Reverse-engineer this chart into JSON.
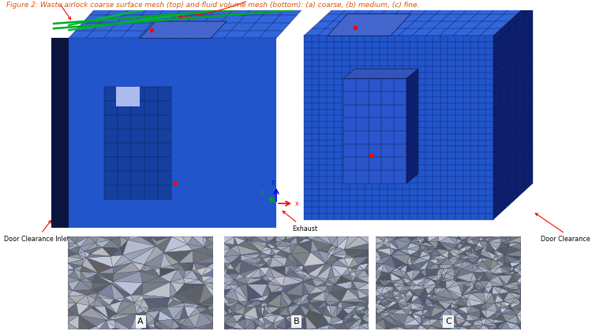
{
  "title": "Figure 2: Waste airlock coarse surface mesh (top) and fluid volume mesh (bottom): (a) coarse, (b) medium, (c) fine.",
  "title_color": "#e05000",
  "title_fontsize": 6.5,
  "bg_color": "#ffffff",
  "blue_main": "#2255cc",
  "blue_dark": "#0d1f6e",
  "blue_mid": "#1a3aaa",
  "blue_top": "#3366dd",
  "blue_strip": "#0a1540",
  "mesh_line_color": "#0a1540",
  "bottom_labels": [
    "A",
    "B",
    "C"
  ],
  "bottom_bg": "#9aaabb",
  "bottom_mesh_color": "#7a8fa0"
}
